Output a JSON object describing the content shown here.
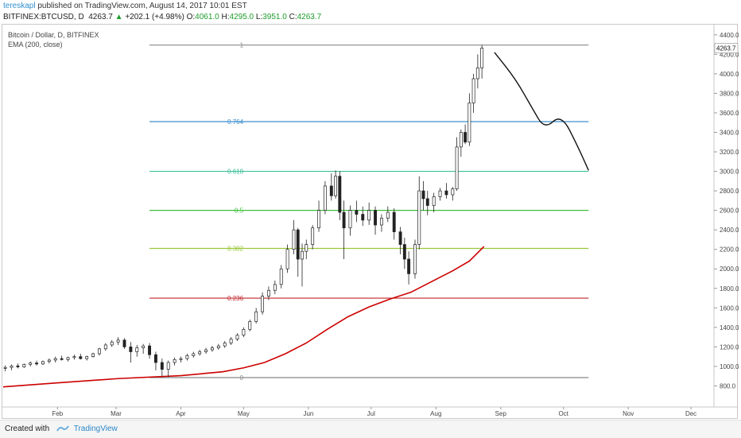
{
  "header": {
    "author": "tereskapl",
    "published_text": "published on TradingView.com, August 14, 2017 10:01 EST",
    "symbol_line": "BITFINEX:BTCUSD, D",
    "last_price": "4263.7",
    "change_arrow": "▲",
    "change": "+202.1 (+4.98%)",
    "o_label": "O:",
    "o_value": "4061.0",
    "h_label": "H:",
    "h_value": "4295.0",
    "l_label": "L:",
    "l_value": "3951.0",
    "c_label": "C:",
    "c_value": "4263.7"
  },
  "legend": {
    "line1": "Bitcoin / Dollar, D, BITFINEX",
    "line2": "EMA (200, close)"
  },
  "footer": {
    "created_with": "Created with",
    "brand": "TradingView"
  },
  "colors": {
    "ema": "#cc0000",
    "fib_0": "#888888",
    "fib_236": "#c0272d",
    "fib_382": "#9ac83a",
    "fib_5": "#3fbf3f",
    "fib_618": "#3fbf9a",
    "fib_764": "#3d8fcf",
    "fib_1": "#888888",
    "projection": "#111111",
    "candle": "#222222"
  },
  "chart_data": {
    "type": "candlestick",
    "symbol": "BITFINEX:BTCUSD",
    "timeframe": "D",
    "x_ticks": [
      "Feb",
      "Mar",
      "Apr",
      "May",
      "Jun",
      "Jul",
      "Aug",
      "Sep",
      "Oct",
      "Nov",
      "Dec"
    ],
    "x_tick_days": [
      31,
      59,
      90,
      120,
      151,
      181,
      212,
      243,
      273,
      304,
      334
    ],
    "y_ticks": [
      800,
      1000,
      1200,
      1400,
      1600,
      1800,
      2000,
      2200,
      2400,
      2600,
      2800,
      3000,
      3200,
      3400,
      3600,
      3800,
      4000,
      4200,
      4400
    ],
    "y_tick_labels": [
      "800.0",
      "1000.0",
      "1200.0",
      "1400.0",
      "1600.0",
      "1800.0",
      "2000.0",
      "2200.0",
      "2400.0",
      "2600.0",
      "2800.0",
      "3000.0",
      "3200.0",
      "3400.0",
      "3600.0",
      "3800.0",
      "4000.0",
      "4200.0",
      "4400.0"
    ],
    "ylim": [
      600,
      4480
    ],
    "xlim_days": [
      5,
      345
    ],
    "last_price_label": "4263.7",
    "fib_levels": [
      {
        "label": "0",
        "value": 885
      },
      {
        "label": "0.236",
        "value": 1700
      },
      {
        "label": "0.382",
        "value": 2210
      },
      {
        "label": "0.5",
        "value": 2600
      },
      {
        "label": "0.618",
        "value": 3000
      },
      {
        "label": "0.764",
        "value": 3510
      },
      {
        "label": "1",
        "value": 4295
      }
    ],
    "fib_range_days": [
      75,
      285
    ],
    "ema": [
      [
        5,
        790
      ],
      [
        30,
        830
      ],
      [
        60,
        875
      ],
      [
        90,
        905
      ],
      [
        110,
        945
      ],
      [
        120,
        985
      ],
      [
        130,
        1040
      ],
      [
        140,
        1130
      ],
      [
        150,
        1240
      ],
      [
        160,
        1380
      ],
      [
        170,
        1510
      ],
      [
        180,
        1610
      ],
      [
        190,
        1690
      ],
      [
        200,
        1760
      ],
      [
        210,
        1870
      ],
      [
        220,
        1980
      ],
      [
        228,
        2080
      ],
      [
        235,
        2230
      ]
    ],
    "projection": [
      [
        240,
        4220
      ],
      [
        250,
        3950
      ],
      [
        258,
        3650
      ],
      [
        264,
        3430
      ],
      [
        272,
        3590
      ],
      [
        280,
        3250
      ],
      [
        285,
        3010
      ]
    ],
    "candles": [
      {
        "d": 6,
        "o": 980,
        "h": 1010,
        "l": 950,
        "c": 990
      },
      {
        "d": 9,
        "o": 990,
        "h": 1020,
        "l": 960,
        "c": 1005
      },
      {
        "d": 12,
        "o": 1005,
        "h": 1030,
        "l": 980,
        "c": 995
      },
      {
        "d": 15,
        "o": 995,
        "h": 1030,
        "l": 985,
        "c": 1020
      },
      {
        "d": 18,
        "o": 1020,
        "h": 1050,
        "l": 1000,
        "c": 1035
      },
      {
        "d": 21,
        "o": 1035,
        "h": 1060,
        "l": 1010,
        "c": 1025
      },
      {
        "d": 24,
        "o": 1025,
        "h": 1060,
        "l": 1015,
        "c": 1050
      },
      {
        "d": 27,
        "o": 1050,
        "h": 1080,
        "l": 1030,
        "c": 1065
      },
      {
        "d": 30,
        "o": 1065,
        "h": 1100,
        "l": 1040,
        "c": 1080
      },
      {
        "d": 33,
        "o": 1080,
        "h": 1110,
        "l": 1060,
        "c": 1070
      },
      {
        "d": 36,
        "o": 1070,
        "h": 1100,
        "l": 1050,
        "c": 1090
      },
      {
        "d": 39,
        "o": 1090,
        "h": 1120,
        "l": 1070,
        "c": 1100
      },
      {
        "d": 42,
        "o": 1100,
        "h": 1130,
        "l": 1070,
        "c": 1080
      },
      {
        "d": 45,
        "o": 1080,
        "h": 1110,
        "l": 1060,
        "c": 1100
      },
      {
        "d": 48,
        "o": 1100,
        "h": 1140,
        "l": 1090,
        "c": 1130
      },
      {
        "d": 51,
        "o": 1130,
        "h": 1190,
        "l": 1110,
        "c": 1180
      },
      {
        "d": 54,
        "o": 1180,
        "h": 1240,
        "l": 1160,
        "c": 1220
      },
      {
        "d": 57,
        "o": 1220,
        "h": 1270,
        "l": 1200,
        "c": 1250
      },
      {
        "d": 60,
        "o": 1250,
        "h": 1300,
        "l": 1220,
        "c": 1270
      },
      {
        "d": 63,
        "o": 1270,
        "h": 1290,
        "l": 1180,
        "c": 1200
      },
      {
        "d": 66,
        "o": 1200,
        "h": 1250,
        "l": 1040,
        "c": 1150
      },
      {
        "d": 69,
        "o": 1150,
        "h": 1220,
        "l": 1100,
        "c": 1190
      },
      {
        "d": 72,
        "o": 1190,
        "h": 1230,
        "l": 1130,
        "c": 1210
      },
      {
        "d": 75,
        "o": 1210,
        "h": 1240,
        "l": 1080,
        "c": 1120
      },
      {
        "d": 78,
        "o": 1120,
        "h": 1150,
        "l": 960,
        "c": 1040
      },
      {
        "d": 81,
        "o": 1040,
        "h": 1080,
        "l": 900,
        "c": 970
      },
      {
        "d": 84,
        "o": 970,
        "h": 1060,
        "l": 890,
        "c": 1040
      },
      {
        "d": 87,
        "o": 1040,
        "h": 1090,
        "l": 1010,
        "c": 1070
      },
      {
        "d": 90,
        "o": 1070,
        "h": 1100,
        "l": 1040,
        "c": 1080
      },
      {
        "d": 93,
        "o": 1080,
        "h": 1130,
        "l": 1060,
        "c": 1110
      },
      {
        "d": 96,
        "o": 1110,
        "h": 1150,
        "l": 1090,
        "c": 1130
      },
      {
        "d": 99,
        "o": 1130,
        "h": 1170,
        "l": 1110,
        "c": 1150
      },
      {
        "d": 102,
        "o": 1150,
        "h": 1190,
        "l": 1130,
        "c": 1170
      },
      {
        "d": 105,
        "o": 1170,
        "h": 1210,
        "l": 1150,
        "c": 1190
      },
      {
        "d": 108,
        "o": 1190,
        "h": 1230,
        "l": 1170,
        "c": 1210
      },
      {
        "d": 111,
        "o": 1210,
        "h": 1260,
        "l": 1190,
        "c": 1240
      },
      {
        "d": 114,
        "o": 1240,
        "h": 1300,
        "l": 1220,
        "c": 1280
      },
      {
        "d": 117,
        "o": 1280,
        "h": 1340,
        "l": 1260,
        "c": 1320
      },
      {
        "d": 120,
        "o": 1320,
        "h": 1400,
        "l": 1300,
        "c": 1380
      },
      {
        "d": 123,
        "o": 1380,
        "h": 1480,
        "l": 1360,
        "c": 1460
      },
      {
        "d": 126,
        "o": 1460,
        "h": 1600,
        "l": 1440,
        "c": 1560
      },
      {
        "d": 129,
        "o": 1560,
        "h": 1760,
        "l": 1530,
        "c": 1720
      },
      {
        "d": 132,
        "o": 1720,
        "h": 1820,
        "l": 1680,
        "c": 1780
      },
      {
        "d": 135,
        "o": 1780,
        "h": 1880,
        "l": 1740,
        "c": 1840
      },
      {
        "d": 138,
        "o": 1840,
        "h": 2040,
        "l": 1800,
        "c": 2000
      },
      {
        "d": 141,
        "o": 2000,
        "h": 2250,
        "l": 1960,
        "c": 2200
      },
      {
        "d": 144,
        "o": 2200,
        "h": 2500,
        "l": 2150,
        "c": 2400
      },
      {
        "d": 146,
        "o": 2400,
        "h": 2420,
        "l": 1920,
        "c": 2100
      },
      {
        "d": 148,
        "o": 2100,
        "h": 2260,
        "l": 1820,
        "c": 2180
      },
      {
        "d": 150,
        "o": 2180,
        "h": 2300,
        "l": 2100,
        "c": 2250
      },
      {
        "d": 153,
        "o": 2250,
        "h": 2450,
        "l": 2200,
        "c": 2420
      },
      {
        "d": 156,
        "o": 2420,
        "h": 2700,
        "l": 2380,
        "c": 2600
      },
      {
        "d": 159,
        "o": 2600,
        "h": 2900,
        "l": 2560,
        "c": 2850
      },
      {
        "d": 162,
        "o": 2850,
        "h": 2980,
        "l": 2700,
        "c": 2750
      },
      {
        "d": 164,
        "o": 2750,
        "h": 3010,
        "l": 2720,
        "c": 2950
      },
      {
        "d": 166,
        "o": 2950,
        "h": 3000,
        "l": 2500,
        "c": 2580
      },
      {
        "d": 168,
        "o": 2580,
        "h": 2700,
        "l": 2100,
        "c": 2420
      },
      {
        "d": 171,
        "o": 2420,
        "h": 2650,
        "l": 2340,
        "c": 2600
      },
      {
        "d": 174,
        "o": 2600,
        "h": 2700,
        "l": 2480,
        "c": 2560
      },
      {
        "d": 177,
        "o": 2560,
        "h": 2640,
        "l": 2440,
        "c": 2500
      },
      {
        "d": 180,
        "o": 2500,
        "h": 2680,
        "l": 2450,
        "c": 2600
      },
      {
        "d": 183,
        "o": 2600,
        "h": 2640,
        "l": 2350,
        "c": 2450
      },
      {
        "d": 186,
        "o": 2450,
        "h": 2560,
        "l": 2380,
        "c": 2520
      },
      {
        "d": 189,
        "o": 2520,
        "h": 2640,
        "l": 2480,
        "c": 2580
      },
      {
        "d": 192,
        "o": 2580,
        "h": 2620,
        "l": 2300,
        "c": 2380
      },
      {
        "d": 195,
        "o": 2380,
        "h": 2430,
        "l": 2150,
        "c": 2250
      },
      {
        "d": 197,
        "o": 2250,
        "h": 2320,
        "l": 2000,
        "c": 2100
      },
      {
        "d": 199,
        "o": 2100,
        "h": 2180,
        "l": 1840,
        "c": 1950
      },
      {
        "d": 202,
        "o": 1950,
        "h": 2300,
        "l": 1900,
        "c": 2250
      },
      {
        "d": 204,
        "o": 2250,
        "h": 2950,
        "l": 2200,
        "c": 2800
      },
      {
        "d": 206,
        "o": 2800,
        "h": 2900,
        "l": 2600,
        "c": 2720
      },
      {
        "d": 208,
        "o": 2720,
        "h": 2800,
        "l": 2550,
        "c": 2650
      },
      {
        "d": 211,
        "o": 2650,
        "h": 2780,
        "l": 2580,
        "c": 2740
      },
      {
        "d": 214,
        "o": 2740,
        "h": 2830,
        "l": 2700,
        "c": 2800
      },
      {
        "d": 217,
        "o": 2800,
        "h": 2880,
        "l": 2720,
        "c": 2760
      },
      {
        "d": 220,
        "o": 2760,
        "h": 2840,
        "l": 2700,
        "c": 2820
      },
      {
        "d": 222,
        "o": 2820,
        "h": 3350,
        "l": 2800,
        "c": 3250
      },
      {
        "d": 224,
        "o": 3250,
        "h": 3430,
        "l": 3150,
        "c": 3400
      },
      {
        "d": 226,
        "o": 3400,
        "h": 3480,
        "l": 3280,
        "c": 3300
      },
      {
        "d": 228,
        "o": 3300,
        "h": 3800,
        "l": 3260,
        "c": 3700
      },
      {
        "d": 230,
        "o": 3700,
        "h": 4000,
        "l": 3600,
        "c": 3950
      },
      {
        "d": 232,
        "o": 3950,
        "h": 4200,
        "l": 3850,
        "c": 4061
      },
      {
        "d": 234,
        "o": 4061,
        "h": 4295,
        "l": 3951,
        "c": 4263.7
      }
    ]
  }
}
